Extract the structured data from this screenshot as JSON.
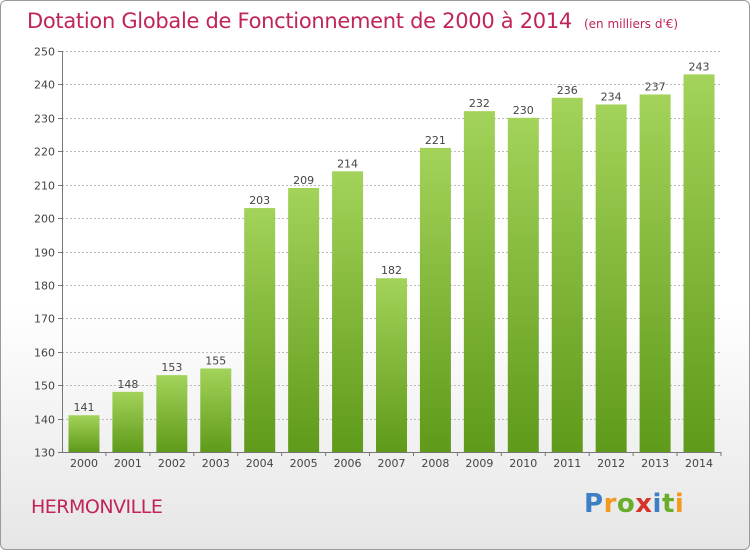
{
  "title": "Dotation Globale de Fonctionnement de 2000 à 2014",
  "subtitle": "(en milliers d'€)",
  "commune": "HERMONVILLE",
  "logo": {
    "text": "Proxiti",
    "letters": [
      "P",
      "r",
      "o",
      "x",
      "i",
      "t",
      "i"
    ],
    "colors": [
      "#3b7fc4",
      "#f39a1e",
      "#6aad2a",
      "#d6332a",
      "#3b7fc4",
      "#6aad2a",
      "#f39a1e"
    ]
  },
  "colors": {
    "title": "#c0245a",
    "bar_top": "#a3d35a",
    "bar_bottom": "#5f9a1a",
    "grid": "#bbbbbb",
    "axis": "#777777"
  },
  "chart_data": {
    "type": "bar",
    "title": "Dotation Globale de Fonctionnement de 2000 à 2014",
    "subtitle": "(en milliers d'€)",
    "xlabel": "",
    "ylabel": "",
    "categories": [
      "2000",
      "2001",
      "2002",
      "2003",
      "2004",
      "2005",
      "2006",
      "2007",
      "2008",
      "2009",
      "2010",
      "2011",
      "2012",
      "2013",
      "2014"
    ],
    "values": [
      141,
      148,
      153,
      155,
      203,
      209,
      214,
      182,
      221,
      232,
      230,
      236,
      234,
      237,
      243
    ],
    "ylim": [
      130,
      250
    ],
    "yticks": [
      130,
      140,
      150,
      160,
      170,
      180,
      190,
      200,
      210,
      220,
      230,
      240,
      250
    ],
    "grid": true,
    "data_labels": true
  }
}
